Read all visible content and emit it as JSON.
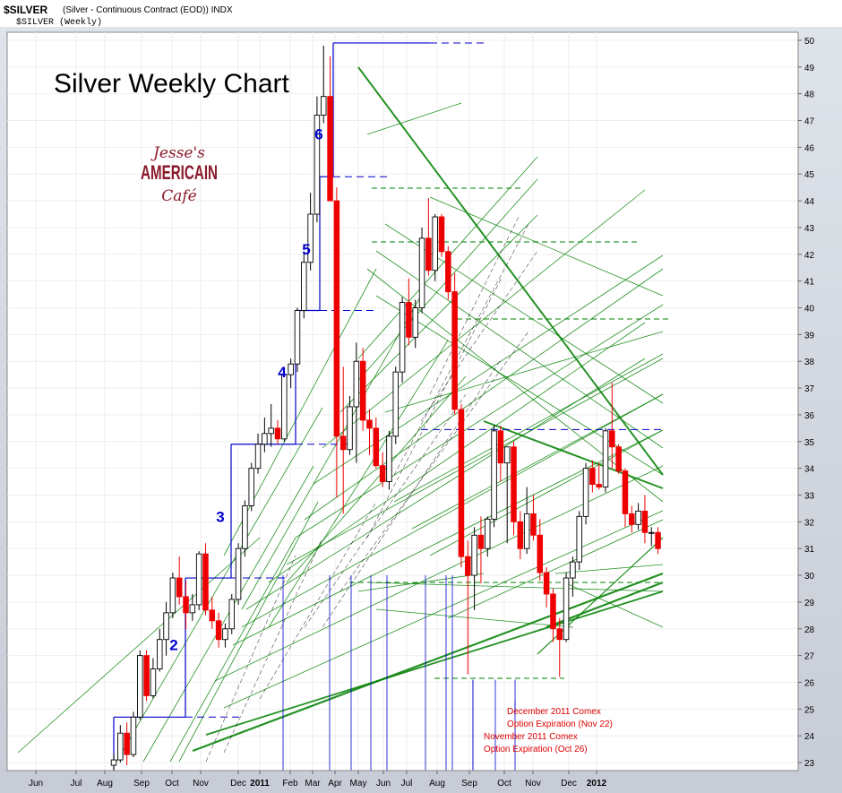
{
  "header": {
    "symbol": "$SILVER",
    "description": "(Silver - Continuous Contract (EOD)) INDX",
    "series_label": "$SILVER (Weekly)"
  },
  "title": "Silver Weekly Chart",
  "logo": {
    "line1": "Jesse's",
    "line2": "AMERICAIN",
    "line3": "Café",
    "color": "#8b1a2b"
  },
  "annotations": [
    {
      "id": "dec",
      "lines": [
        "December 2011 Comex",
        "Option Expiration (Nov 22)"
      ]
    },
    {
      "id": "nov",
      "lines": [
        "November 2011 Comex",
        "Option Expiration (Oct 26)"
      ]
    }
  ],
  "wave_labels": [
    {
      "label": "2",
      "price": 27.4
    },
    {
      "label": "3",
      "price": 32.2
    },
    {
      "label": "4",
      "price": 37.6
    },
    {
      "label": "5",
      "price": 42.2
    },
    {
      "label": "6",
      "price": 46.5
    }
  ],
  "chart_data": {
    "type": "candlestick",
    "title": "Silver Weekly Chart",
    "ylim": [
      22.7,
      50.3
    ],
    "y_ticks": [
      23,
      24,
      25,
      26,
      27,
      28,
      29,
      30,
      31,
      32,
      33,
      34,
      35,
      36,
      37,
      38,
      39,
      40,
      41,
      42,
      43,
      44,
      45,
      46,
      47,
      48,
      49,
      50
    ],
    "x_ticks": [
      "Jun",
      "Jul",
      "Aug",
      "Sep",
      "Oct",
      "Nov",
      "Dec",
      "2011",
      "Feb",
      "Mar",
      "Apr",
      "May",
      "Jun",
      "Jul",
      "Aug",
      "Sep",
      "Oct",
      "Nov",
      "Dec",
      "2012"
    ],
    "x_tick_bold": [
      "2011",
      "2012"
    ],
    "grid": true,
    "up_color": "#ffffff",
    "down_color": "#ee0000",
    "step_color": "#0000cc",
    "trend_color": "#008000",
    "annotation_color": "#dd0000",
    "candles": [
      {
        "o": 22.9,
        "h": 23.3,
        "l": 22.7,
        "c": 23.1
      },
      {
        "o": 23.1,
        "h": 24.4,
        "l": 23.0,
        "c": 24.1
      },
      {
        "o": 24.1,
        "h": 24.5,
        "l": 22.9,
        "c": 23.3
      },
      {
        "o": 23.3,
        "h": 24.9,
        "l": 23.2,
        "c": 24.7
      },
      {
        "o": 24.7,
        "h": 27.2,
        "l": 24.6,
        "c": 27.0
      },
      {
        "o": 27.0,
        "h": 27.2,
        "l": 25.3,
        "c": 25.5
      },
      {
        "o": 25.5,
        "h": 26.9,
        "l": 25.4,
        "c": 26.5
      },
      {
        "o": 26.5,
        "h": 28.0,
        "l": 26.4,
        "c": 27.6
      },
      {
        "o": 27.6,
        "h": 29.0,
        "l": 27.0,
        "c": 28.6
      },
      {
        "o": 28.6,
        "h": 30.1,
        "l": 28.4,
        "c": 29.9
      },
      {
        "o": 29.9,
        "h": 30.7,
        "l": 28.9,
        "c": 29.2
      },
      {
        "o": 29.2,
        "h": 29.8,
        "l": 28.0,
        "c": 28.6
      },
      {
        "o": 28.6,
        "h": 29.3,
        "l": 28.3,
        "c": 28.9
      },
      {
        "o": 28.9,
        "h": 30.9,
        "l": 28.7,
        "c": 30.8
      },
      {
        "o": 30.8,
        "h": 31.2,
        "l": 28.5,
        "c": 28.7
      },
      {
        "o": 28.7,
        "h": 29.2,
        "l": 28.0,
        "c": 28.3
      },
      {
        "o": 28.3,
        "h": 28.6,
        "l": 27.3,
        "c": 27.6
      },
      {
        "o": 27.6,
        "h": 28.2,
        "l": 27.3,
        "c": 28.0
      },
      {
        "o": 28.0,
        "h": 29.3,
        "l": 27.8,
        "c": 29.1
      },
      {
        "o": 29.1,
        "h": 31.2,
        "l": 28.9,
        "c": 31.0
      },
      {
        "o": 31.0,
        "h": 32.8,
        "l": 30.7,
        "c": 32.6
      },
      {
        "o": 32.6,
        "h": 34.2,
        "l": 32.4,
        "c": 34.0
      },
      {
        "o": 34.0,
        "h": 35.3,
        "l": 33.8,
        "c": 34.9
      },
      {
        "o": 34.9,
        "h": 35.9,
        "l": 34.6,
        "c": 35.3
      },
      {
        "o": 35.3,
        "h": 36.4,
        "l": 34.8,
        "c": 35.5
      },
      {
        "o": 35.5,
        "h": 35.8,
        "l": 34.9,
        "c": 35.1
      },
      {
        "o": 35.1,
        "h": 37.6,
        "l": 35.0,
        "c": 37.5
      },
      {
        "o": 37.5,
        "h": 38.1,
        "l": 37.0,
        "c": 37.9
      },
      {
        "o": 37.9,
        "h": 40.0,
        "l": 37.6,
        "c": 39.9
      },
      {
        "o": 39.9,
        "h": 42.1,
        "l": 39.6,
        "c": 41.7
      },
      {
        "o": 41.7,
        "h": 44.3,
        "l": 41.4,
        "c": 43.5
      },
      {
        "o": 43.5,
        "h": 47.9,
        "l": 43.2,
        "c": 47.2
      },
      {
        "o": 47.2,
        "h": 49.8,
        "l": 46.9,
        "c": 47.9
      },
      {
        "o": 47.9,
        "h": 49.4,
        "l": 44.0,
        "c": 44.0
      },
      {
        "o": 44.0,
        "h": 44.5,
        "l": 32.9,
        "c": 35.2
      },
      {
        "o": 35.2,
        "h": 37.8,
        "l": 32.3,
        "c": 34.7
      },
      {
        "o": 34.7,
        "h": 36.7,
        "l": 34.5,
        "c": 36.3
      },
      {
        "o": 36.3,
        "h": 38.7,
        "l": 34.2,
        "c": 38.0
      },
      {
        "o": 38.0,
        "h": 38.5,
        "l": 35.4,
        "c": 35.8
      },
      {
        "o": 35.8,
        "h": 36.2,
        "l": 34.5,
        "c": 35.5
      },
      {
        "o": 35.5,
        "h": 35.9,
        "l": 34.0,
        "c": 34.1
      },
      {
        "o": 34.1,
        "h": 34.6,
        "l": 33.3,
        "c": 33.5
      },
      {
        "o": 33.5,
        "h": 35.4,
        "l": 33.2,
        "c": 35.2
      },
      {
        "o": 35.2,
        "h": 37.8,
        "l": 34.9,
        "c": 37.6
      },
      {
        "o": 37.6,
        "h": 40.4,
        "l": 37.2,
        "c": 40.2
      },
      {
        "o": 40.2,
        "h": 41.1,
        "l": 38.6,
        "c": 38.9
      },
      {
        "o": 38.9,
        "h": 40.3,
        "l": 38.5,
        "c": 40.0
      },
      {
        "o": 40.0,
        "h": 43.0,
        "l": 39.8,
        "c": 42.6
      },
      {
        "o": 42.6,
        "h": 44.1,
        "l": 41.2,
        "c": 41.4
      },
      {
        "o": 41.4,
        "h": 43.5,
        "l": 41.0,
        "c": 43.4
      },
      {
        "o": 43.4,
        "h": 43.5,
        "l": 41.9,
        "c": 42.1
      },
      {
        "o": 42.1,
        "h": 42.3,
        "l": 40.3,
        "c": 40.6
      },
      {
        "o": 40.6,
        "h": 41.3,
        "l": 36.0,
        "c": 36.2
      },
      {
        "o": 36.2,
        "h": 36.4,
        "l": 30.3,
        "c": 30.7
      },
      {
        "o": 30.7,
        "h": 31.3,
        "l": 26.3,
        "c": 30.0
      },
      {
        "o": 30.0,
        "h": 31.8,
        "l": 28.7,
        "c": 31.5
      },
      {
        "o": 31.5,
        "h": 32.2,
        "l": 29.7,
        "c": 31.0
      },
      {
        "o": 31.0,
        "h": 32.2,
        "l": 30.7,
        "c": 32.1
      },
      {
        "o": 32.1,
        "h": 35.6,
        "l": 31.8,
        "c": 35.4
      },
      {
        "o": 35.4,
        "h": 35.6,
        "l": 33.5,
        "c": 34.2
      },
      {
        "o": 34.2,
        "h": 34.8,
        "l": 31.2,
        "c": 34.8
      },
      {
        "o": 34.8,
        "h": 35.0,
        "l": 31.5,
        "c": 32.0
      },
      {
        "o": 32.0,
        "h": 32.4,
        "l": 30.6,
        "c": 31.0
      },
      {
        "o": 31.0,
        "h": 33.3,
        "l": 30.8,
        "c": 32.3
      },
      {
        "o": 32.3,
        "h": 33.0,
        "l": 31.3,
        "c": 31.5
      },
      {
        "o": 31.5,
        "h": 32.1,
        "l": 29.8,
        "c": 30.1
      },
      {
        "o": 30.1,
        "h": 30.3,
        "l": 28.8,
        "c": 29.3
      },
      {
        "o": 29.3,
        "h": 29.5,
        "l": 27.5,
        "c": 28.0
      },
      {
        "o": 28.0,
        "h": 28.4,
        "l": 26.2,
        "c": 27.6
      },
      {
        "o": 27.6,
        "h": 30.1,
        "l": 27.5,
        "c": 29.9
      },
      {
        "o": 29.9,
        "h": 30.7,
        "l": 29.2,
        "c": 30.5
      },
      {
        "o": 30.5,
        "h": 32.4,
        "l": 30.2,
        "c": 32.2
      },
      {
        "o": 32.2,
        "h": 34.2,
        "l": 31.9,
        "c": 34.0
      },
      {
        "o": 34.0,
        "h": 34.3,
        "l": 33.1,
        "c": 33.4
      },
      {
        "o": 33.4,
        "h": 34.2,
        "l": 33.2,
        "c": 33.3
      },
      {
        "o": 33.3,
        "h": 35.5,
        "l": 33.1,
        "c": 35.4
      },
      {
        "o": 35.4,
        "h": 37.2,
        "l": 34.0,
        "c": 34.8
      },
      {
        "o": 34.8,
        "h": 34.9,
        "l": 33.8,
        "c": 33.9
      },
      {
        "o": 33.9,
        "h": 34.0,
        "l": 31.8,
        "c": 32.3
      },
      {
        "o": 32.3,
        "h": 32.6,
        "l": 31.6,
        "c": 31.9
      },
      {
        "o": 31.9,
        "h": 32.7,
        "l": 31.7,
        "c": 32.4
      },
      {
        "o": 32.4,
        "h": 33.0,
        "l": 31.2,
        "c": 31.6
      },
      {
        "o": 31.6,
        "h": 31.8,
        "l": 31.1,
        "c": 31.6
      },
      {
        "o": 31.6,
        "h": 31.8,
        "l": 30.8,
        "c": 31.0
      }
    ],
    "step_levels": [
      24.7,
      29.9,
      34.9,
      39.9,
      44.9,
      49.9
    ],
    "expiry_lines": [
      {
        "id": "nov",
        "from": 26.1,
        "to": 22.6
      },
      {
        "id": "dec",
        "from": 25.3,
        "to": 22.6
      }
    ]
  }
}
